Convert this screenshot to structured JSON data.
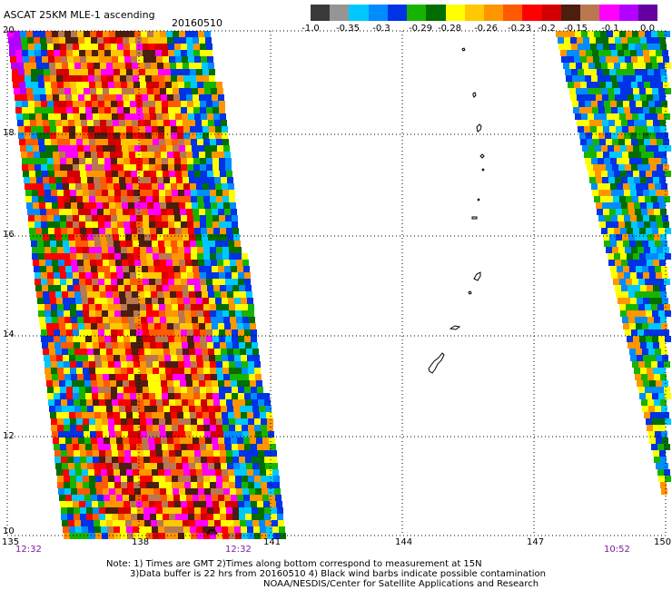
{
  "title": "ASCAT 25KM MLE-1 ascending",
  "date": "20160510",
  "colorbar": {
    "colors": [
      "#3a3a3a",
      "#959595",
      "#00c8ff",
      "#008cff",
      "#0032e6",
      "#16b400",
      "#006e00",
      "#ffff00",
      "#ffc800",
      "#ff9600",
      "#ff5a00",
      "#ff0000",
      "#d20000",
      "#4b1e0f",
      "#b97850",
      "#ff00ff",
      "#b400ff",
      "#6400a0"
    ],
    "labels": [
      "-1.0",
      "-0.35",
      "-0.3",
      "-0.29",
      "-0.28",
      "-0.26",
      "-0.23",
      "-0.2",
      "-0.15",
      "-0.1",
      "0.0"
    ]
  },
  "axes": {
    "lon_ticks": [
      "135",
      "138",
      "141",
      "144",
      "147",
      "150"
    ],
    "lat_ticks": [
      "20",
      "18",
      "16",
      "14",
      "12",
      "10"
    ]
  },
  "times": {
    "left_swath_start": "12:32",
    "left_swath_end": "12:32",
    "right_swath": "10:52"
  },
  "footer": {
    "line1": "Note: 1) Times are GMT 2)Times along bottom correspond to measurement at 15N",
    "line2": "3)Data buffer is 22 hrs from 20160510 4) Black wind barbs indicate possible contamination",
    "line3": "NOAA/NESDIS/Center for Satellite Applications and Research"
  }
}
